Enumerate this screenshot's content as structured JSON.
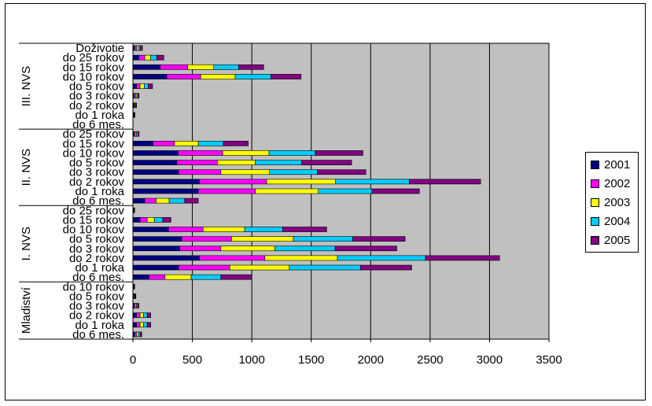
{
  "chart_data": {
    "type": "bar",
    "orientation": "horizontal",
    "stacked": true,
    "xlim": [
      0,
      3500
    ],
    "x_ticks": [
      "0",
      "500",
      "1000",
      "1500",
      "2000",
      "2500",
      "3000",
      "3500"
    ],
    "grid": "vertical",
    "plot_background": "#c0c0c0",
    "legend_position": "right",
    "groups": [
      {
        "name": "III. NVS",
        "categories": [
          "Doživotie",
          "do 25 rokov",
          "do 15 rokov",
          "do 10 rokov",
          "do 5 rokov",
          "do 3 rokov",
          "do 2 rokov",
          "do 1 roka",
          "do 6 mes."
        ]
      },
      {
        "name": "II. NVS",
        "categories": [
          "do 25 rokov",
          "do 15 rokov",
          "do 10 rokov",
          "do 5 rokov",
          "do 3 rokov",
          "do 2 rokov",
          "do 1 roka",
          "do 6 mes."
        ]
      },
      {
        "name": "I. NVS",
        "categories": [
          "do 25 rokov",
          "do 15 rokov",
          "do 10 rokov",
          "do 5 rokov",
          "do 3 rokov",
          "do 2 rokov",
          "do 1 roka",
          "do 6 mes."
        ]
      },
      {
        "name": "Mladiství",
        "categories": [
          "do 10 rokov",
          "do 5 rokov",
          "do 3 rokov",
          "do 2 rokov",
          "do 1 roka",
          "do 6 mes."
        ]
      }
    ],
    "series": [
      {
        "name": "2001",
        "color": "#000080",
        "values": [
          15,
          50,
          230,
          285,
          30,
          12,
          8,
          5,
          0,
          10,
          170,
          380,
          370,
          385,
          560,
          550,
          100,
          3,
          60,
          300,
          410,
          395,
          560,
          385,
          135,
          3,
          5,
          10,
          30,
          30,
          15
        ]
      },
      {
        "name": "2002",
        "color": "#ff00ff",
        "values": [
          15,
          50,
          230,
          285,
          30,
          10,
          5,
          3,
          0,
          10,
          180,
          375,
          340,
          355,
          565,
          480,
          95,
          3,
          60,
          290,
          420,
          345,
          550,
          430,
          135,
          3,
          5,
          10,
          30,
          30,
          15
        ]
      },
      {
        "name": "2003",
        "color": "#ffff00",
        "values": [
          15,
          50,
          220,
          290,
          35,
          10,
          6,
          3,
          0,
          10,
          200,
          390,
          320,
          410,
          580,
          530,
          110,
          3,
          60,
          350,
          520,
          455,
          610,
          500,
          220,
          3,
          5,
          10,
          30,
          30,
          15
        ]
      },
      {
        "name": "2004",
        "color": "#00ccff",
        "values": [
          15,
          50,
          210,
          300,
          35,
          10,
          6,
          3,
          0,
          12,
          210,
          390,
          390,
          400,
          620,
          450,
          130,
          3,
          70,
          320,
          500,
          505,
          740,
          600,
          250,
          3,
          5,
          10,
          30,
          30,
          15
        ]
      },
      {
        "name": "2005",
        "color": "#800080",
        "values": [
          20,
          60,
          210,
          255,
          35,
          10,
          6,
          3,
          0,
          10,
          210,
          400,
          420,
          410,
          600,
          400,
          115,
          3,
          70,
          370,
          440,
          520,
          625,
          430,
          260,
          3,
          5,
          10,
          30,
          30,
          15
        ]
      }
    ]
  }
}
